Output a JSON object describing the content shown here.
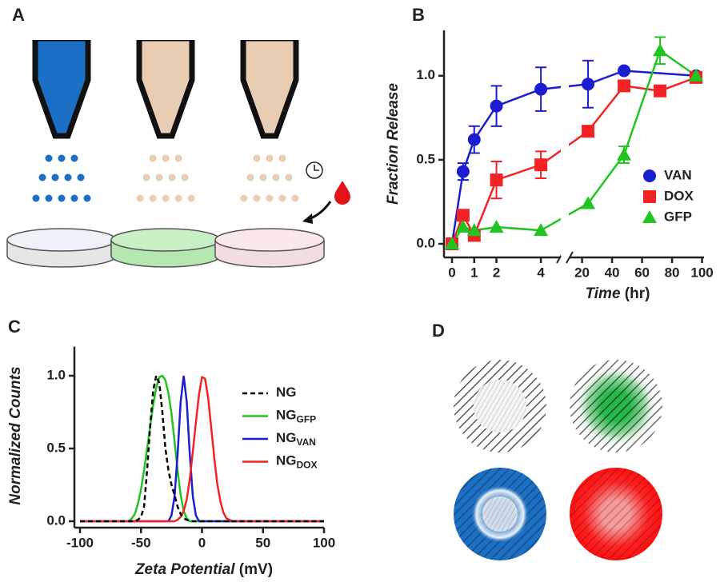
{
  "panels": [
    "A",
    "B",
    "C",
    "D"
  ],
  "chart_data": [
    {
      "type": "line",
      "ylabel": "Fraction Release",
      "xlabel": "Time",
      "xlabel_unit": " (hr)",
      "x_segments": [
        {
          "xlim": [
            -0.36,
            4.86
          ],
          "xticks": [
            0,
            1,
            2,
            4
          ]
        },
        {
          "xlim": [
            11.7,
            101.3
          ],
          "xticks": [
            20,
            40,
            60,
            80,
            100
          ]
        }
      ],
      "ylim": [
        -0.05,
        1.27
      ],
      "yticks": [
        {
          "value": 0,
          "label": "0.0"
        },
        {
          "value": 0.5,
          "label": "0.5"
        },
        {
          "value": 1,
          "label": "1.0"
        }
      ],
      "legend": "lower right",
      "series": [
        {
          "name": "VAN",
          "color": "#1c1cd0",
          "marker": "circle",
          "x": [
            0,
            0.5,
            1,
            2,
            4,
            24,
            48,
            96
          ],
          "values": [
            0,
            0.43,
            0.62,
            0.82,
            0.92,
            0.95,
            1.03,
            1.0
          ],
          "errors": [
            0,
            0.05,
            0.08,
            0.12,
            0.13,
            0.14,
            0.01,
            0.02
          ]
        },
        {
          "name": "DOX",
          "color": "#f42222",
          "marker": "square",
          "x": [
            0,
            0.5,
            1,
            2,
            4,
            24,
            48,
            72,
            96
          ],
          "values": [
            0,
            0.17,
            0.05,
            0.38,
            0.47,
            0.67,
            0.94,
            0.91,
            0.99
          ],
          "errors": [
            0,
            0.02,
            0.02,
            0.11,
            0.08,
            0.02,
            0.02,
            0.02,
            0.02
          ]
        },
        {
          "name": "GFP",
          "color": "#22c422",
          "marker": "triangle",
          "x": [
            0,
            0.5,
            1,
            2,
            4,
            24,
            48,
            72,
            96
          ],
          "values": [
            0,
            0.1,
            0.08,
            0.1,
            0.08,
            0.24,
            0.53,
            1.15,
            1.0
          ],
          "errors": [
            0,
            0,
            0,
            0,
            0,
            0,
            0.05,
            0.08,
            0
          ]
        }
      ]
    },
    {
      "type": "line",
      "ylabel": "Normalized Counts",
      "xlabel": "Zeta Potential",
      "xlabel_unit": " (mV)",
      "xlim": [
        -100,
        100
      ],
      "xticks": [
        -100,
        -50,
        0,
        50,
        100
      ],
      "ylim": [
        0,
        1.2
      ],
      "yticks": [
        {
          "value": 0,
          "label": "0.0"
        },
        {
          "value": 0.5,
          "label": "0.5"
        },
        {
          "value": 1,
          "label": "1.0"
        }
      ],
      "legend": "right",
      "x": [
        -100,
        -60,
        -57.5,
        -55,
        -52.5,
        -50,
        -47.5,
        -45,
        -42.5,
        -40,
        -37.5,
        -35,
        -32.5,
        -30,
        -27.5,
        -25,
        -22.5,
        -20,
        -17.5,
        -15,
        -12.5,
        -10,
        -7.5,
        -5,
        -2.5,
        0,
        2.5,
        5,
        7.5,
        10,
        12.5,
        15,
        17.5,
        20,
        22.5,
        25,
        27.5,
        30,
        100
      ],
      "series": [
        {
          "name": "NG",
          "color": "#000000",
          "linestyle": "dashed",
          "values": [
            0,
            0,
            0,
            0,
            0.01,
            0.03,
            0.1,
            0.35,
            0.65,
            0.9,
            1.0,
            0.95,
            0.75,
            0.5,
            0.35,
            0.25,
            0.18,
            0.1,
            0.05,
            0.02,
            0.01,
            0,
            0,
            0,
            0,
            0,
            0,
            0,
            0,
            0,
            0,
            0,
            0,
            0,
            0,
            0,
            0,
            0,
            0
          ]
        },
        {
          "name": "NG",
          "name_sub": "GFP",
          "color": "#22c422",
          "linestyle": "solid",
          "values": [
            0,
            0,
            0.02,
            0.05,
            0.12,
            0.22,
            0.35,
            0.5,
            0.65,
            0.8,
            0.92,
            0.99,
            1.0,
            0.97,
            0.88,
            0.74,
            0.55,
            0.35,
            0.18,
            0.07,
            0.02,
            0,
            0,
            0,
            0,
            0,
            0,
            0,
            0,
            0,
            0,
            0,
            0,
            0,
            0,
            0,
            0,
            0,
            0
          ]
        },
        {
          "name": "NG",
          "name_sub": "VAN",
          "color": "#1c1cd0",
          "linestyle": "solid",
          "values": [
            0,
            0,
            0,
            0,
            0,
            0,
            0,
            0,
            0,
            0,
            0,
            0,
            0,
            0,
            0,
            0.04,
            0.17,
            0.46,
            0.82,
            1.0,
            0.82,
            0.46,
            0.17,
            0.04,
            0,
            0,
            0,
            0,
            0,
            0,
            0,
            0,
            0,
            0,
            0,
            0,
            0,
            0,
            0
          ]
        },
        {
          "name": "NG",
          "name_sub": "DOX",
          "color": "#f42222",
          "linestyle": "solid",
          "values": [
            0,
            0,
            0,
            0,
            0,
            0,
            0,
            0,
            0,
            0,
            0,
            0,
            0,
            0,
            0,
            0,
            0,
            0.01,
            0.03,
            0.07,
            0.15,
            0.29,
            0.48,
            0.68,
            0.87,
            0.99,
            0.98,
            0.85,
            0.65,
            0.44,
            0.26,
            0.14,
            0.06,
            0.02,
            0.01,
            0,
            0,
            0,
            0
          ]
        }
      ]
    }
  ]
}
